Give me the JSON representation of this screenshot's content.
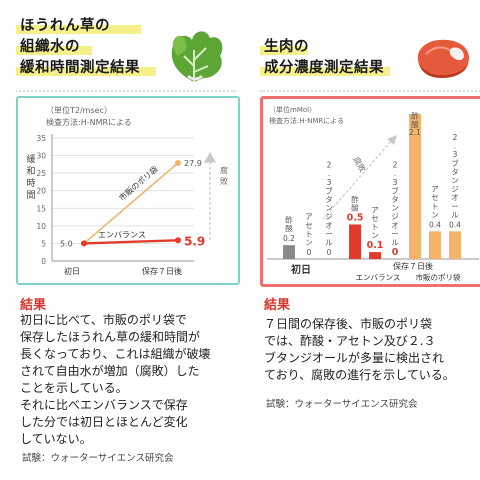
{
  "left": {
    "title_lines": [
      "ほうれん草の",
      "組織水の",
      "緩和時間測定結果"
    ],
    "icon": "spinach-icon",
    "result_title": "結果",
    "result_text": "初日に比べて、市販のポリ袋で\n保存したほうれん草の緩和時間が\n長くなっており、これは組織が破壊\nされて自由水が増加（腐敗）した\nことを示している。\nそれに比べエンバランスで保存\nした分では初日とほとんど変化\nしていない。",
    "source": "試験：ウォーターサイエンス研究会"
  },
  "right": {
    "title_lines": [
      "生肉の",
      "成分濃度測定結果"
    ],
    "icon": "meat-icon",
    "result_title": "結果",
    "result_text": "７日間の保存後、市販のポリ袋\nでは、酢酸・アセトン及び２.３\nブタンジオールが多量に検出され\nており、腐敗の進行を示している。",
    "source": "試験：ウォーターサイエンス研究会"
  },
  "chart_data": [
    {
      "type": "line",
      "note_lines": [
        "（単位T2/msec）",
        "検査方法:H-NMRによる"
      ],
      "ylabel": "緩和時間",
      "ylim": [
        0,
        35
      ],
      "yticks": [
        0,
        5,
        10,
        15,
        20,
        25,
        30,
        35
      ],
      "categories": [
        "初日",
        "保存７日後"
      ],
      "series": [
        {
          "name": "市販のポリ袋",
          "values": [
            5.0,
            27.9
          ],
          "color": "#f4b26b",
          "value_labels": [
            "",
            "27.9"
          ]
        },
        {
          "name": "エンバランス",
          "values": [
            5.0,
            5.9
          ],
          "color": "#e23b2b",
          "value_labels": [
            "5.0",
            "5.9"
          ]
        }
      ],
      "annotation": "腐敗"
    },
    {
      "type": "bar",
      "note_lines": [
        "（単位mMol）",
        "検査方法:H-NMRによる"
      ],
      "ylim": [
        0,
        2.2
      ],
      "groups": [
        {
          "label": "初日",
          "bars": [
            {
              "name": "酢酸",
              "value": 0.2,
              "label": "0.2",
              "color": "#8a8a8a"
            },
            {
              "name": "アセトン",
              "value": 0,
              "label": "0",
              "color": "#8a8a8a"
            },
            {
              "name": "2.3ブタンジオール",
              "value": 0,
              "label": "0",
              "color": "#8a8a8a"
            }
          ]
        },
        {
          "label": "エンバランス",
          "bars": [
            {
              "name": "酢酸",
              "value": 0.5,
              "label": "0.5",
              "color": "#e23b2b"
            },
            {
              "name": "アセトン",
              "value": 0.1,
              "label": "0.1",
              "color": "#e23b2b"
            },
            {
              "name": "2.3ブタンジオール",
              "value": 0,
              "label": "0",
              "color": "#e23b2b"
            }
          ]
        },
        {
          "label": "市販のポリ袋",
          "bars": [
            {
              "name": "酢酸",
              "value": 2.1,
              "label": "2.1",
              "color": "#f4b26b"
            },
            {
              "name": "アセトン",
              "value": 0.4,
              "label": "0.4",
              "color": "#f4b26b"
            },
            {
              "name": "2.3ブタンジオール",
              "value": 0.4,
              "label": "0.4",
              "color": "#f4b26b"
            }
          ]
        }
      ],
      "group_header": "保存７日後",
      "annotation": "腐敗"
    }
  ]
}
